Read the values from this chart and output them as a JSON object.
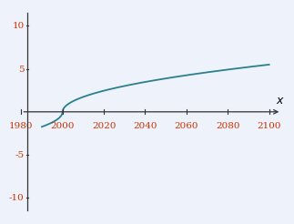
{
  "xmin": 1978,
  "xmax": 2108,
  "ymin": -12,
  "ymax": 12,
  "xticks": [
    1980,
    2000,
    2020,
    2040,
    2060,
    2080,
    2100
  ],
  "yticks": [
    -10,
    -5,
    5,
    10
  ],
  "xlabel": "x",
  "line_color": "#2a7f8f",
  "background_color": "#eef2fb",
  "grid_color": "#c8cfe8",
  "tick_label_color": "#cc3300",
  "tick_label_fontsize": 7.5,
  "axis_color": "#333333",
  "curve_xmin": 1990,
  "curve_xmax": 2100,
  "x_zero": 2000,
  "curve_scale": 0.55
}
